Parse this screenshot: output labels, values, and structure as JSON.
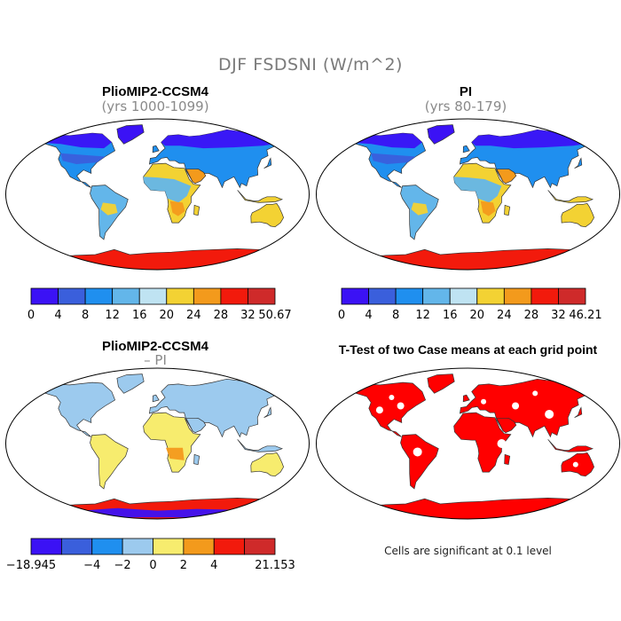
{
  "figure_title": "DJF FSDSNI (W/m^2)",
  "panels": [
    {
      "id": "tl",
      "title": "PlioMIP2-CCSM4",
      "subtitle": "(yrs 1000-1099)",
      "scheme": "abs_plio"
    },
    {
      "id": "tr",
      "title": "PI",
      "subtitle": "(yrs 80-179)",
      "scheme": "abs_pi"
    },
    {
      "id": "bl",
      "title": "PlioMIP2-CCSM4",
      "subtitle": "– PI",
      "scheme": "diff"
    },
    {
      "id": "br",
      "title": "T-Test of two Case means at each grid point",
      "subtitle": "",
      "scheme": "ttest"
    }
  ],
  "colorbars": {
    "abs_plio": {
      "colors": [
        "#3b12f5",
        "#3a5fdc",
        "#1f8fef",
        "#63b6ea",
        "#bfe3f2",
        "#f3d233",
        "#f39a1c",
        "#f21a0c",
        "#cf2a2a"
      ],
      "labels": [
        "0",
        "4",
        "8",
        "12",
        "16",
        "20",
        "24",
        "28",
        "32",
        "50.67"
      ]
    },
    "abs_pi": {
      "colors": [
        "#3b12f5",
        "#3a5fdc",
        "#1f8fef",
        "#63b6ea",
        "#bfe3f2",
        "#f3d233",
        "#f39a1c",
        "#f21a0c",
        "#cf2a2a"
      ],
      "labels": [
        "0",
        "4",
        "8",
        "12",
        "16",
        "20",
        "24",
        "28",
        "32",
        "46.21"
      ]
    },
    "diff": {
      "colors": [
        "#3b12f5",
        "#3a5fdc",
        "#1f8fef",
        "#9ccaee",
        "#f7ec6e",
        "#f39a1c",
        "#f21a0c",
        "#cf2a2a"
      ],
      "labels": [
        "-18.945",
        "",
        "-4",
        "-2",
        "0",
        "2",
        "4",
        "",
        "21.153"
      ]
    }
  },
  "ttest_note": "Cells are significant at 0.1 level",
  "legend_colors": {
    "polar": "#3b12f5",
    "north_mid": "#3a5fdc",
    "mid": "#1f8fef",
    "sub": "#63b6ea",
    "warm": "#f3d233",
    "hot": "#f39a1c",
    "antarctic": "#f21a0c",
    "diff_base": "#9ccaee",
    "diff_pos": "#f7ec6e",
    "signif": "#ff0000"
  }
}
